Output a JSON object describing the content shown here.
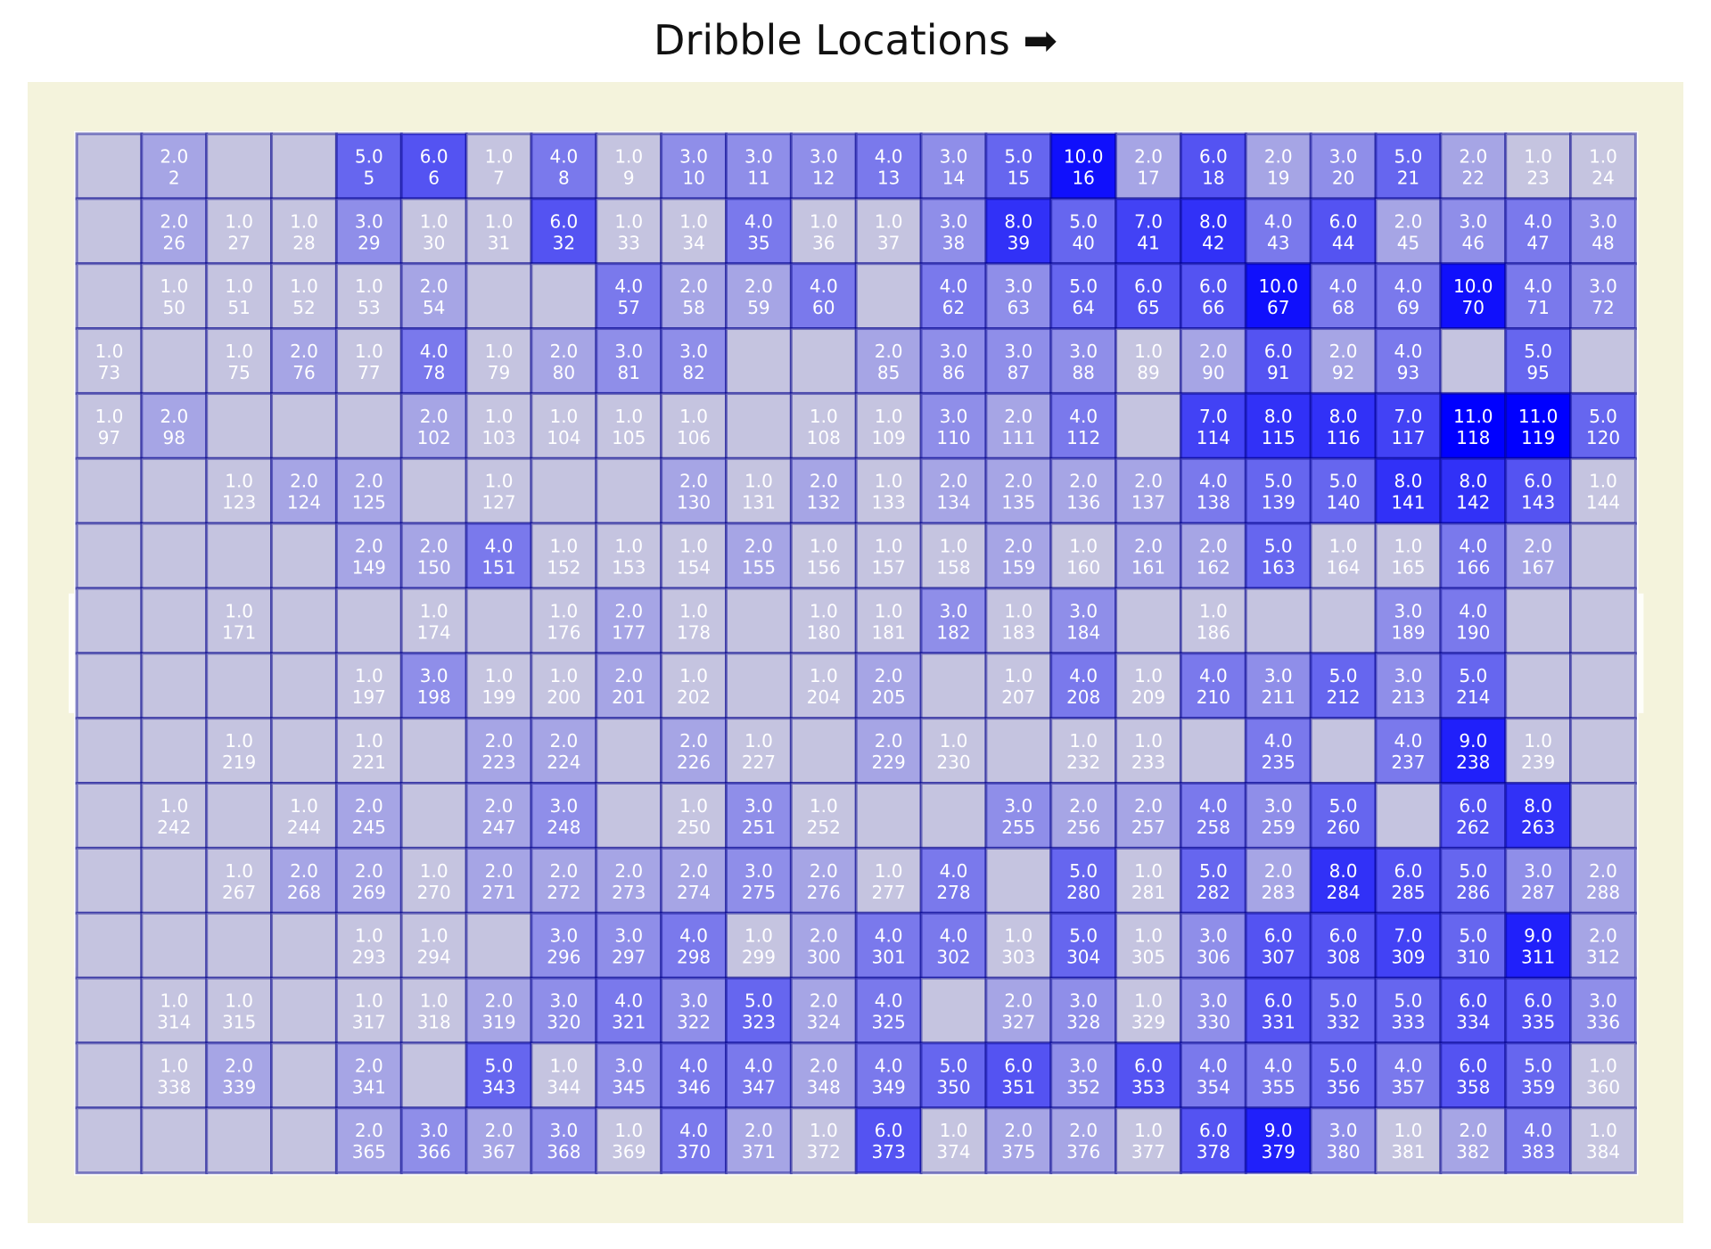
{
  "chart_data": {
    "type": "heatmap",
    "title": "Dribble Locations ➡",
    "grid": {
      "rows": 16,
      "cols": 24
    },
    "label_format": "value_over_bin_index",
    "cells": [
      [
        null,
        2,
        null,
        null,
        5,
        6,
        1,
        4,
        1,
        3,
        3,
        3,
        4,
        3,
        5,
        10,
        2,
        6,
        2,
        3,
        5,
        2,
        1,
        1
      ],
      [
        null,
        2,
        1,
        1,
        3,
        1,
        1,
        6,
        1,
        1,
        4,
        1,
        1,
        3,
        8,
        5,
        7,
        8,
        4,
        6,
        2,
        3,
        4,
        3
      ],
      [
        null,
        1,
        1,
        1,
        1,
        2,
        null,
        null,
        4,
        2,
        2,
        4,
        null,
        4,
        3,
        5,
        6,
        6,
        10,
        4,
        4,
        10,
        4,
        3
      ],
      [
        1,
        null,
        1,
        2,
        1,
        4,
        1,
        2,
        3,
        3,
        null,
        null,
        2,
        3,
        3,
        3,
        1,
        2,
        6,
        2,
        4,
        null,
        5,
        null
      ],
      [
        1,
        2,
        null,
        null,
        null,
        2,
        1,
        1,
        1,
        1,
        null,
        1,
        1,
        3,
        2,
        4,
        null,
        7,
        8,
        8,
        7,
        11,
        11,
        5
      ],
      [
        null,
        null,
        1,
        2,
        2,
        null,
        1,
        null,
        null,
        2,
        1,
        2,
        1,
        2,
        2,
        2,
        2,
        4,
        5,
        5,
        8,
        8,
        6,
        1
      ],
      [
        null,
        null,
        null,
        null,
        2,
        2,
        4,
        1,
        1,
        1,
        2,
        1,
        1,
        1,
        2,
        1,
        2,
        2,
        5,
        1,
        1,
        4,
        2,
        null
      ],
      [
        null,
        null,
        1,
        null,
        null,
        1,
        null,
        1,
        2,
        1,
        null,
        1,
        1,
        3,
        1,
        3,
        null,
        1,
        null,
        null,
        3,
        4,
        null,
        null
      ],
      [
        null,
        null,
        null,
        null,
        1,
        3,
        1,
        1,
        2,
        1,
        null,
        1,
        2,
        null,
        1,
        4,
        1,
        4,
        3,
        5,
        3,
        5,
        null,
        null
      ],
      [
        null,
        null,
        1,
        null,
        1,
        null,
        2,
        2,
        null,
        2,
        1,
        null,
        2,
        1,
        null,
        1,
        1,
        null,
        4,
        null,
        4,
        9,
        1,
        null
      ],
      [
        null,
        1,
        null,
        1,
        2,
        null,
        2,
        3,
        null,
        1,
        3,
        1,
        null,
        null,
        3,
        2,
        2,
        4,
        3,
        5,
        null,
        6,
        8,
        null
      ],
      [
        null,
        null,
        1,
        2,
        2,
        1,
        2,
        2,
        2,
        2,
        3,
        2,
        1,
        4,
        null,
        5,
        1,
        5,
        2,
        8,
        6,
        5,
        3,
        2
      ],
      [
        null,
        null,
        null,
        null,
        1,
        1,
        null,
        3,
        3,
        4,
        1,
        2,
        4,
        4,
        1,
        5,
        1,
        3,
        6,
        6,
        7,
        5,
        9,
        2
      ],
      [
        null,
        1,
        1,
        null,
        1,
        1,
        2,
        3,
        4,
        3,
        5,
        2,
        4,
        null,
        2,
        3,
        1,
        3,
        6,
        5,
        5,
        6,
        6,
        3
      ],
      [
        null,
        1,
        2,
        null,
        2,
        null,
        5,
        1,
        3,
        4,
        4,
        2,
        4,
        5,
        6,
        3,
        6,
        4,
        4,
        5,
        4,
        6,
        5,
        1
      ],
      [
        null,
        null,
        null,
        null,
        2,
        3,
        2,
        3,
        1,
        4,
        2,
        1,
        6,
        1,
        2,
        2,
        1,
        6,
        9,
        3,
        1,
        2,
        4,
        1
      ]
    ],
    "vmax": 11,
    "colors": {
      "background": "#f4f3dc",
      "pitch_lines": "#ffffff",
      "empty_cell": "#c5c4e0",
      "cell_high": "#0000ff",
      "cell_edge": "#00008b",
      "cell_label": "#ffffff"
    }
  }
}
